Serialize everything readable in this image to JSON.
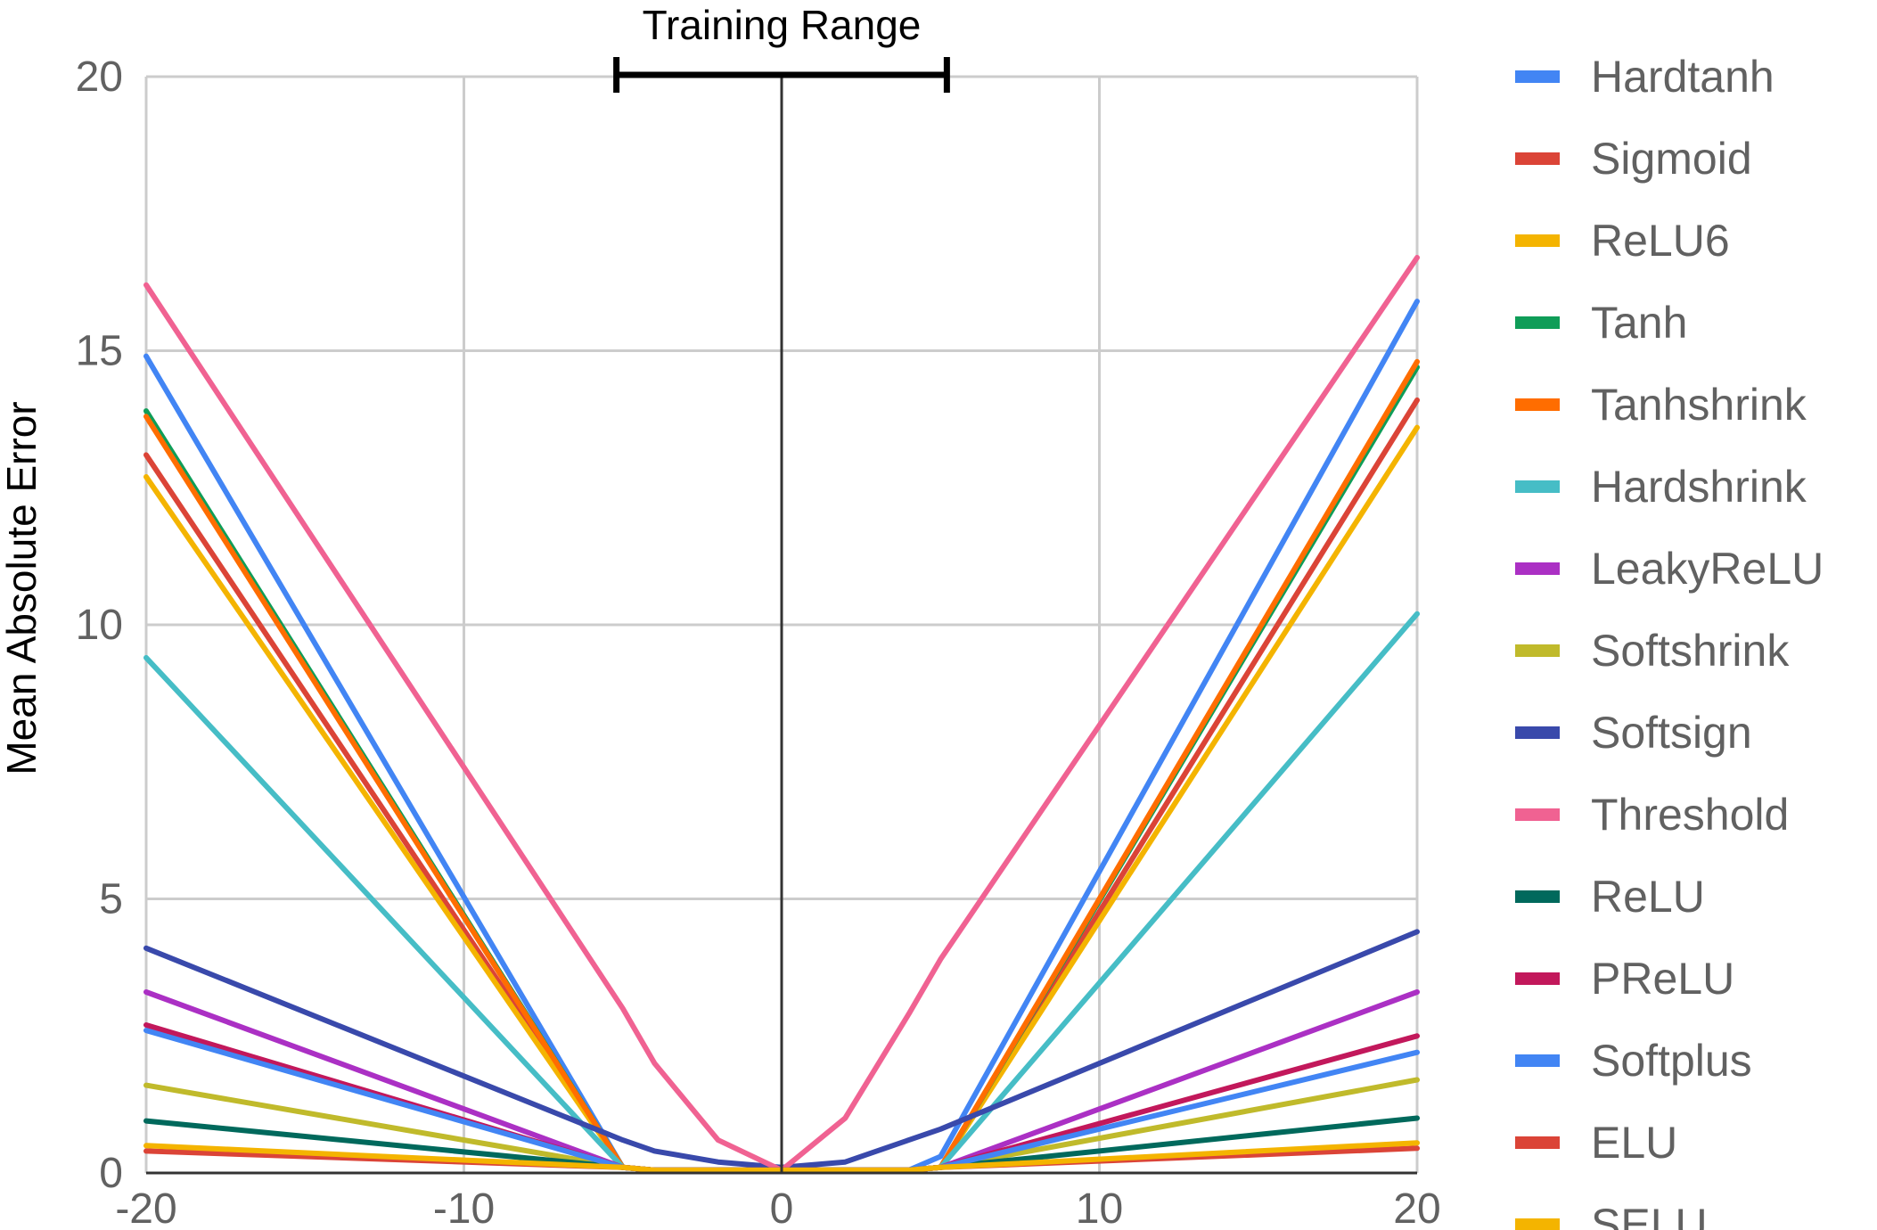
{
  "chart_data": {
    "type": "line",
    "title": "",
    "xlabel": "",
    "ylabel": "Mean Absolute Error",
    "xlim": [
      -20,
      20
    ],
    "ylim": [
      0,
      20
    ],
    "xticks": [
      "-20",
      "-10",
      "0",
      "10",
      "20"
    ],
    "yticks": [
      "0",
      "5",
      "10",
      "15",
      "20"
    ],
    "grid": true,
    "legend_position": "right",
    "annotation": {
      "label": "Training Range",
      "x_from": -5.2,
      "x_to": 5.2
    },
    "x": [
      -20,
      -5,
      -4,
      -2,
      0,
      2,
      4,
      5,
      20
    ],
    "series": [
      {
        "name": "Hardtanh",
        "color": "#4285F4",
        "values": [
          14.9,
          0.1,
          0.05,
          0.05,
          0.05,
          0.05,
          0.05,
          0.3,
          15.9
        ]
      },
      {
        "name": "Sigmoid",
        "color": "#DB4437",
        "values": [
          13.1,
          0.1,
          0.05,
          0.05,
          0.05,
          0.05,
          0.05,
          0.1,
          14.1
        ]
      },
      {
        "name": "ReLU6",
        "color": "#F4B400",
        "values": [
          12.7,
          0.1,
          0.05,
          0.05,
          0.05,
          0.05,
          0.05,
          0.1,
          13.6
        ]
      },
      {
        "name": "Tanh",
        "color": "#0F9D58",
        "values": [
          13.9,
          0.1,
          0.05,
          0.05,
          0.05,
          0.05,
          0.05,
          0.1,
          14.7
        ]
      },
      {
        "name": "Tanhshrink",
        "color": "#FF6D00",
        "values": [
          13.8,
          0.1,
          0.05,
          0.05,
          0.05,
          0.05,
          0.05,
          0.1,
          14.8
        ]
      },
      {
        "name": "Hardshrink",
        "color": "#46BDC6",
        "values": [
          9.4,
          0.1,
          0.05,
          0.05,
          0.05,
          0.05,
          0.05,
          0.1,
          10.2
        ]
      },
      {
        "name": "LeakyReLU",
        "color": "#AB30C4",
        "values": [
          3.3,
          0.1,
          0.05,
          0.05,
          0.05,
          0.05,
          0.05,
          0.1,
          3.3
        ]
      },
      {
        "name": "Softshrink",
        "color": "#C0BA2B",
        "values": [
          1.6,
          0.1,
          0.05,
          0.05,
          0.05,
          0.05,
          0.05,
          0.1,
          1.7
        ]
      },
      {
        "name": "Softsign",
        "color": "#3949AB",
        "values": [
          4.1,
          0.6,
          0.4,
          0.2,
          0.1,
          0.2,
          0.6,
          0.8,
          4.4
        ]
      },
      {
        "name": "Threshold",
        "color": "#F06292",
        "values": [
          16.2,
          3.0,
          2.0,
          0.6,
          0.05,
          1.0,
          2.9,
          3.9,
          16.7
        ]
      },
      {
        "name": "ReLU",
        "color": "#00695C",
        "values": [
          0.95,
          0.1,
          0.05,
          0.05,
          0.05,
          0.05,
          0.05,
          0.1,
          1.0
        ]
      },
      {
        "name": "PReLU",
        "color": "#C2185B",
        "values": [
          2.7,
          0.1,
          0.05,
          0.05,
          0.05,
          0.05,
          0.05,
          0.1,
          2.5
        ]
      },
      {
        "name": "Softplus",
        "color": "#4285F4",
        "values": [
          2.6,
          0.1,
          0.05,
          0.05,
          0.05,
          0.05,
          0.05,
          0.1,
          2.2
        ]
      },
      {
        "name": "ELU",
        "color": "#DB4437",
        "values": [
          0.4,
          0.1,
          0.05,
          0.05,
          0.05,
          0.05,
          0.05,
          0.1,
          0.45
        ]
      },
      {
        "name": "SELU",
        "color": "#F4B400",
        "values": [
          0.5,
          0.1,
          0.05,
          0.05,
          0.05,
          0.05,
          0.05,
          0.1,
          0.55
        ]
      }
    ]
  }
}
